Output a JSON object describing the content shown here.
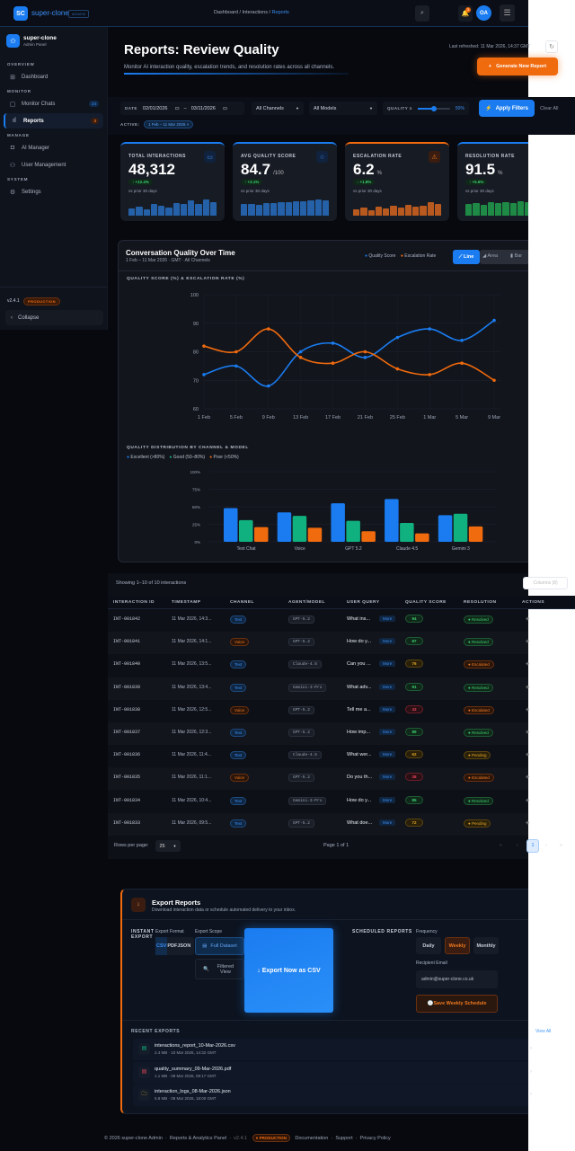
{
  "header": {
    "logo": "SC",
    "brand": "super-clone",
    "tag": "ADMIN",
    "breadcrumb": [
      "Dashboard",
      "Interactions",
      "Reports"
    ],
    "search_icon": "search-icon",
    "notif_count": "3",
    "avatar": "OA"
  },
  "sidebar": {
    "brand": "super-clone",
    "brand_sub": "Admin Panel",
    "sections": [
      {
        "label": "OVERVIEW",
        "items": [
          {
            "label": "Dashboard",
            "icon": "grid-icon"
          }
        ]
      },
      {
        "label": "MONITOR",
        "items": [
          {
            "label": "Monitor Chats",
            "icon": "chat-icon",
            "badge": "24"
          },
          {
            "label": "Reports",
            "icon": "bar-chart-icon",
            "badge": "3",
            "active": true
          }
        ]
      },
      {
        "label": "MANAGE",
        "items": [
          {
            "label": "AI Manager",
            "icon": "robot-icon"
          },
          {
            "label": "User Management",
            "icon": "users-icon"
          }
        ]
      },
      {
        "label": "SYSTEM",
        "items": [
          {
            "label": "Settings",
            "icon": "gear-icon"
          }
        ]
      }
    ],
    "version": "v2.4.1",
    "env": "PRODUCTION",
    "collapse": "Collapse"
  },
  "page": {
    "title": "Reports: Review Quality",
    "subtitle": "Monitor AI interaction quality, escalation trends, and resolution rates across all channels.",
    "last_refreshed": "Last refreshed: 11 Mar 2026, 14:37 GMT",
    "generate": "Generate New Report"
  },
  "filters": {
    "date_label": "DATE",
    "date_from": "02/01/2026",
    "date_to": "03/11/2026",
    "channel": "All Channels",
    "model": "All Models",
    "quality_label": "QUALITY ≥",
    "quality_value": "50%",
    "quality_fraction": 0.5,
    "apply": "Apply Filters",
    "clear": "Clear All",
    "active_label": "ACTIVE:",
    "active_chip": "1 Feb – 11 Mar 2026"
  },
  "kpis": [
    {
      "label": "TOTAL INTERACTIONS",
      "value": "48,312",
      "unit": "",
      "delta": "↑ +12.4%",
      "vs": "vs prior 30 days",
      "color": "#1a7cf0",
      "icon": "chat-icon",
      "spark": [
        0.45,
        0.55,
        0.4,
        0.75,
        0.62,
        0.5,
        0.8,
        0.7,
        0.92,
        0.75,
        1,
        0.85
      ]
    },
    {
      "label": "AVG QUALITY SCORE",
      "value": "84.7",
      "unit": "/100",
      "delta": "↑ +3.1%",
      "vs": "vs prior 30 days",
      "color": "#1a7cf0",
      "icon": "star-icon",
      "spark": [
        0.7,
        0.75,
        0.65,
        0.8,
        0.78,
        0.85,
        0.82,
        0.9,
        0.88,
        0.92,
        1,
        0.95
      ]
    },
    {
      "label": "ESCALATION RATE",
      "value": "6.2",
      "unit": "%",
      "delta": "↓ +1.8%",
      "vs": "vs prior 30 days",
      "color": "#f06a0e",
      "icon": "warning-icon",
      "spark": [
        0.38,
        0.52,
        0.32,
        0.55,
        0.45,
        0.6,
        0.5,
        0.65,
        0.55,
        0.62,
        0.82,
        0.74
      ]
    },
    {
      "label": "RESOLUTION RATE",
      "value": "91.5",
      "unit": "%",
      "delta": "↑ +5.6%",
      "vs": "vs prior 30 days",
      "color": "#1a7cf0",
      "icon": "check-circle-icon",
      "spark": [
        0.7,
        0.78,
        0.65,
        0.82,
        0.78,
        0.86,
        0.8,
        0.88,
        0.85,
        0.9,
        0.92,
        0.95
      ]
    }
  ],
  "chart_data": [
    {
      "type": "line",
      "title": "Conversation Quality Over Time",
      "subtitle": "1 Feb – 11 Mar 2026 · GMT · All Channels",
      "ylabel": "QUALITY SCORE (%) & ESCALATION RATE (%)",
      "x": [
        "1 Feb",
        "5 Feb",
        "9 Feb",
        "13 Feb",
        "17 Feb",
        "21 Feb",
        "25 Feb",
        "1 Mar",
        "5 Mar",
        "9 Mar"
      ],
      "ylim": [
        60,
        100
      ],
      "yticks": [
        60,
        70,
        80,
        90,
        100
      ],
      "grid": true,
      "legend": "top-right",
      "series": [
        {
          "name": "Quality Score",
          "color": "#1a7cf0",
          "values": [
            72,
            75,
            68,
            80,
            83,
            78,
            85,
            88,
            84,
            91
          ]
        },
        {
          "name": "Escalation Rate",
          "color": "#f06a0e",
          "values": [
            82,
            80,
            88,
            78,
            76,
            80,
            74,
            72,
            76,
            70
          ]
        }
      ],
      "view_modes": [
        "Line",
        "Area",
        "Bar"
      ],
      "active_mode": "Line"
    },
    {
      "type": "bar",
      "title": "QUALITY DISTRIBUTION BY CHANNEL & MODEL",
      "categories": [
        "Text Chat",
        "Voice",
        "GPT 5.2",
        "Claude 4.5",
        "Gemini 3"
      ],
      "ylim": [
        0,
        100
      ],
      "yticks": [
        "0%",
        "25%",
        "50%",
        "75%",
        "100%"
      ],
      "legend": "top-left",
      "series": [
        {
          "name": "Excellent (>80%)",
          "color": "#1a7cf0",
          "values": [
            48,
            42,
            55,
            61,
            38
          ]
        },
        {
          "name": "Good (50–80%)",
          "color": "#10b07f",
          "values": [
            31,
            37,
            30,
            27,
            40
          ]
        },
        {
          "name": "Poor (<50%)",
          "color": "#f06a0e",
          "values": [
            21,
            20,
            15,
            12,
            22
          ]
        }
      ]
    }
  ],
  "table": {
    "showing": "Showing 1–10 of 10 interactions",
    "columns_btn": "Columns (8)",
    "headers": [
      "INTERACTION ID",
      "TIMESTAMP",
      "CHANNEL",
      "AGENT/MODEL",
      "USER QUERY",
      "QUALITY SCORE",
      "RESOLUTION",
      "ACTIONS"
    ],
    "more": "More",
    "rows": [
      [
        "INT-001842",
        "11 Mar 2026, 14:3...",
        "Text",
        "GPT-5.2",
        "What ins...",
        "94",
        "Resolved"
      ],
      [
        "INT-001841",
        "11 Mar 2026, 14:1...",
        "Voice",
        "GPT-5.2",
        "How do y...",
        "87",
        "Resolved"
      ],
      [
        "INT-001840",
        "11 Mar 2026, 13:5...",
        "Text",
        "Claude-4.5",
        "Can you ...",
        "76",
        "Escalated"
      ],
      [
        "INT-001839",
        "11 Mar 2026, 13:4...",
        "Text",
        "Gemini-3-Pro",
        "What adv...",
        "91",
        "Resolved"
      ],
      [
        "INT-001838",
        "11 Mar 2026, 12:5...",
        "Voice",
        "GPT-5.2",
        "Tell me a...",
        "43",
        "Escalated"
      ],
      [
        "INT-001837",
        "11 Mar 2026, 12:3...",
        "Text",
        "GPT-5.2",
        "How imp...",
        "89",
        "Resolved"
      ],
      [
        "INT-001836",
        "11 Mar 2026, 11:4...",
        "Text",
        "Claude-4.5",
        "What wer...",
        "62",
        "Pending"
      ],
      [
        "INT-001835",
        "11 Mar 2026, 11:1...",
        "Voice",
        "GPT-5.2",
        "Do you th...",
        "38",
        "Escalated"
      ],
      [
        "INT-001834",
        "11 Mar 2026, 10:4...",
        "Text",
        "Gemini-3-Pro",
        "How do y...",
        "85",
        "Resolved"
      ],
      [
        "INT-001833",
        "11 Mar 2026, 09:5...",
        "Text",
        "GPT-5.2",
        "What doe...",
        "72",
        "Pending"
      ]
    ],
    "rows_per_page_label": "Rows per page:",
    "rows_per_page": "25",
    "page_text": "Page 1 of 1",
    "page_current": "1"
  },
  "export": {
    "title": "Export Reports",
    "subtitle": "Download interaction data or schedule automated delivery to your inbox.",
    "instant": "INSTANT EXPORT",
    "format_label": "Export Format",
    "formats": [
      "CSV",
      "PDF",
      "JSON"
    ],
    "scope_label": "Export Scope",
    "scope_full": "Full Dataset",
    "scope_filtered": "Filtered View",
    "export_now": "↓ Export Now as CSV",
    "scheduled": "SCHEDULED REPORTS",
    "frequency_label": "Frequency",
    "frequencies": [
      "Daily",
      "Weekly",
      "Monthly"
    ],
    "email_label": "Recipient Email",
    "email": "admin@super-clone.co.uk",
    "save": "Save Weekly Schedule",
    "recent_label": "RECENT EXPORTS",
    "view_all": "View All",
    "recent": [
      {
        "name": "interactions_report_10-Mar-2026.csv",
        "meta": "2.4 MB · 10 Mar 2026, 14:32 GMT",
        "color": "#10b07f"
      },
      {
        "name": "quality_summary_09-Mar-2026.pdf",
        "meta": "1.1 MB · 09 Mar 2026, 09:17 GMT",
        "color": "#e0455a"
      },
      {
        "name": "interaction_logs_08-Mar-2026.json",
        "meta": "5.8 MB · 08 Mar 2026, 18:00 GMT",
        "color": "#d9a520"
      }
    ]
  },
  "footer": {
    "copyright": "© 2026 super-clone Admin",
    "panel": "Reports & Analytics Panel",
    "version": "v2.4.1",
    "env": "● PRODUCTION",
    "links": [
      "Documentation",
      "Support",
      "Privacy Policy"
    ]
  }
}
